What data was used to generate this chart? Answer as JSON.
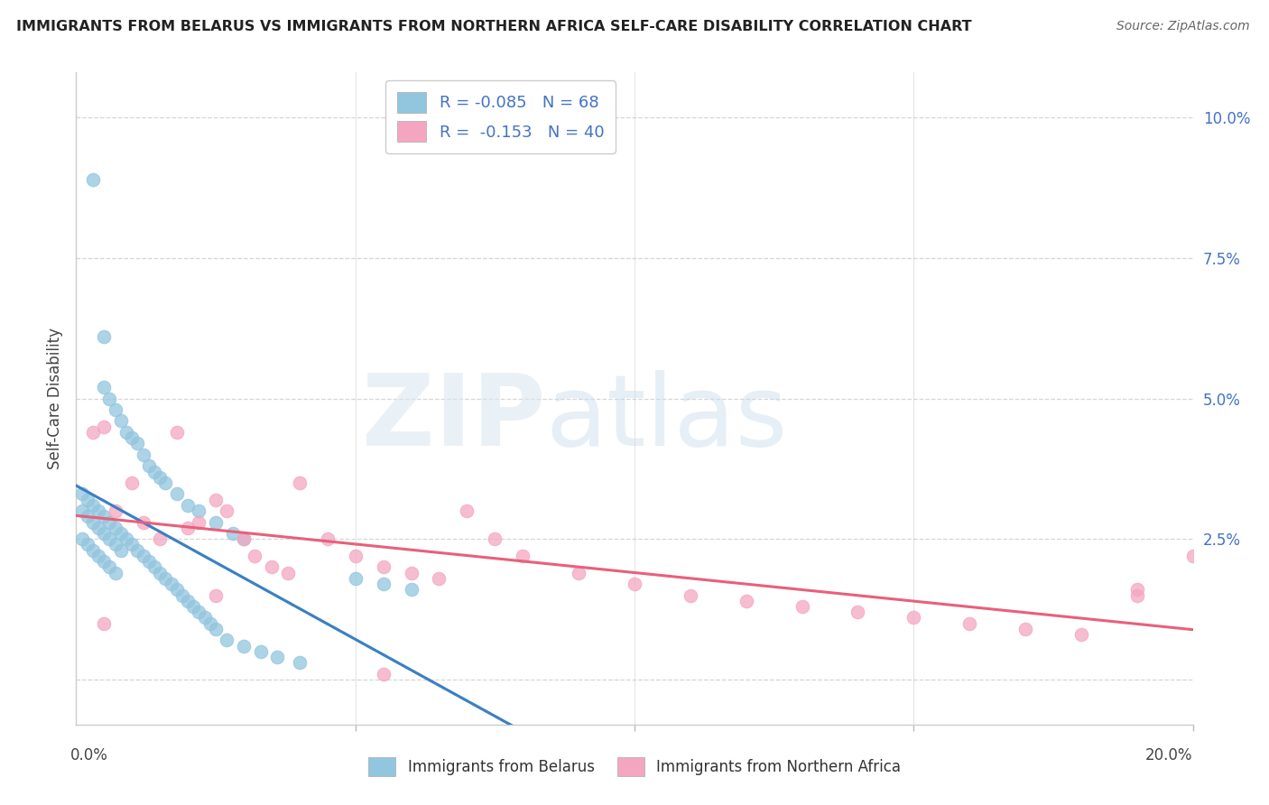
{
  "title": "IMMIGRANTS FROM BELARUS VS IMMIGRANTS FROM NORTHERN AFRICA SELF-CARE DISABILITY CORRELATION CHART",
  "source": "Source: ZipAtlas.com",
  "ylabel": "Self-Care Disability",
  "y_ticks": [
    0.0,
    0.025,
    0.05,
    0.075,
    0.1
  ],
  "y_tick_labels": [
    "",
    "2.5%",
    "5.0%",
    "7.5%",
    "10.0%"
  ],
  "x_range": [
    0.0,
    0.2
  ],
  "y_range": [
    -0.008,
    0.108
  ],
  "legend_r1": "R = -0.085",
  "legend_n1": "N = 68",
  "legend_r2": "R =  -0.153",
  "legend_n2": "N = 40",
  "color_blue": "#92c5de",
  "color_pink": "#f4a6c0",
  "color_blue_line": "#3b80c3",
  "color_pink_line": "#e8607a",
  "color_blue_dashed": "#92c5de",
  "watermark_zip": "ZIP",
  "watermark_atlas": "atlas",
  "belarus_x": [
    0.003,
    0.005,
    0.005,
    0.006,
    0.007,
    0.008,
    0.009,
    0.01,
    0.011,
    0.012,
    0.013,
    0.014,
    0.015,
    0.016,
    0.018,
    0.02,
    0.022,
    0.025,
    0.028,
    0.03,
    0.001,
    0.002,
    0.003,
    0.004,
    0.005,
    0.006,
    0.007,
    0.008,
    0.009,
    0.01,
    0.011,
    0.012,
    0.013,
    0.014,
    0.015,
    0.016,
    0.017,
    0.018,
    0.019,
    0.02,
    0.021,
    0.022,
    0.023,
    0.024,
    0.025,
    0.027,
    0.03,
    0.033,
    0.036,
    0.04,
    0.001,
    0.002,
    0.003,
    0.004,
    0.005,
    0.006,
    0.007,
    0.05,
    0.055,
    0.06,
    0.001,
    0.002,
    0.003,
    0.004,
    0.005,
    0.006,
    0.007,
    0.008
  ],
  "belarus_y": [
    0.089,
    0.061,
    0.052,
    0.05,
    0.048,
    0.046,
    0.044,
    0.043,
    0.042,
    0.04,
    0.038,
    0.037,
    0.036,
    0.035,
    0.033,
    0.031,
    0.03,
    0.028,
    0.026,
    0.025,
    0.033,
    0.032,
    0.031,
    0.03,
    0.029,
    0.028,
    0.027,
    0.026,
    0.025,
    0.024,
    0.023,
    0.022,
    0.021,
    0.02,
    0.019,
    0.018,
    0.017,
    0.016,
    0.015,
    0.014,
    0.013,
    0.012,
    0.011,
    0.01,
    0.009,
    0.007,
    0.006,
    0.005,
    0.004,
    0.003,
    0.025,
    0.024,
    0.023,
    0.022,
    0.021,
    0.02,
    0.019,
    0.018,
    0.017,
    0.016,
    0.03,
    0.029,
    0.028,
    0.027,
    0.026,
    0.025,
    0.024,
    0.023
  ],
  "n_africa_x": [
    0.003,
    0.005,
    0.007,
    0.01,
    0.012,
    0.015,
    0.018,
    0.02,
    0.022,
    0.025,
    0.027,
    0.03,
    0.032,
    0.035,
    0.038,
    0.04,
    0.045,
    0.05,
    0.055,
    0.06,
    0.065,
    0.07,
    0.075,
    0.08,
    0.09,
    0.1,
    0.11,
    0.12,
    0.13,
    0.14,
    0.15,
    0.16,
    0.17,
    0.18,
    0.19,
    0.2,
    0.005,
    0.025,
    0.055,
    0.19
  ],
  "n_africa_y": [
    0.044,
    0.045,
    0.03,
    0.035,
    0.028,
    0.025,
    0.044,
    0.027,
    0.028,
    0.032,
    0.03,
    0.025,
    0.022,
    0.02,
    0.019,
    0.035,
    0.025,
    0.022,
    0.02,
    0.019,
    0.018,
    0.03,
    0.025,
    0.022,
    0.019,
    0.017,
    0.015,
    0.014,
    0.013,
    0.012,
    0.011,
    0.01,
    0.009,
    0.008,
    0.015,
    0.022,
    0.01,
    0.015,
    0.001,
    0.016
  ]
}
